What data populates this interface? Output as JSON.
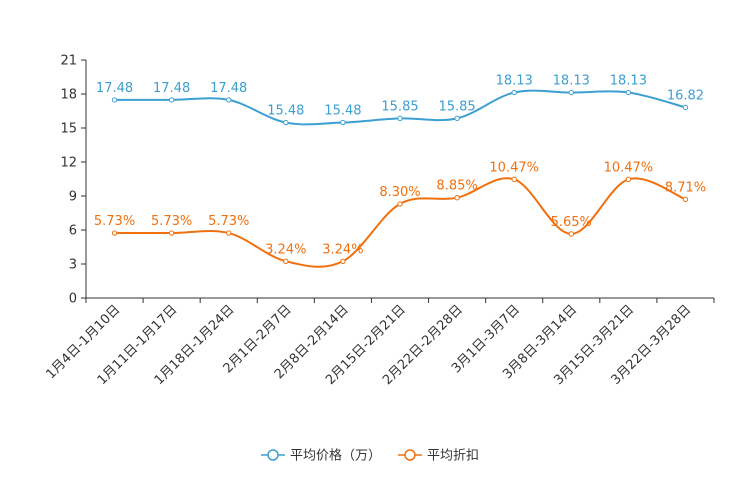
{
  "chart_data": {
    "type": "line",
    "categories": [
      "1月4日-1月10日",
      "1月11日-1月17日",
      "1月18日-1月24日",
      "2月1日-2月7日",
      "2月8日-2月14日",
      "2月15日-2月21日",
      "2月22日-2月28日",
      "3月1日-3月7日",
      "3月8日-3月14日",
      "3月15日-3月21日",
      "3月22日-3月28日"
    ],
    "ylim": [
      0,
      21
    ],
    "yticks": [
      "0",
      "3",
      "6",
      "9",
      "12",
      "15",
      "18",
      "21"
    ],
    "series": [
      {
        "name": "平均价格（万）",
        "color": "#3c9fd1",
        "values": [
          17.48,
          17.48,
          17.48,
          15.48,
          15.48,
          15.85,
          15.85,
          18.13,
          18.13,
          18.13,
          16.82
        ],
        "labels": [
          "17.48",
          "17.48",
          "17.48",
          "15.48",
          "15.48",
          "15.85",
          "15.85",
          "18.13",
          "18.13",
          "18.13",
          "16.82"
        ]
      },
      {
        "name": "平均折扣",
        "color": "#f0700f",
        "values": [
          5.73,
          5.73,
          5.73,
          3.24,
          3.24,
          8.3,
          8.85,
          10.47,
          5.65,
          10.47,
          8.71
        ],
        "labels": [
          "5.73%",
          "5.73%",
          "5.73%",
          "3.24%",
          "3.24%",
          "8.30%",
          "8.85%",
          "10.47%",
          "5.65%",
          "10.47%",
          "8.71%"
        ]
      }
    ],
    "legend_position": "bottom-center"
  }
}
